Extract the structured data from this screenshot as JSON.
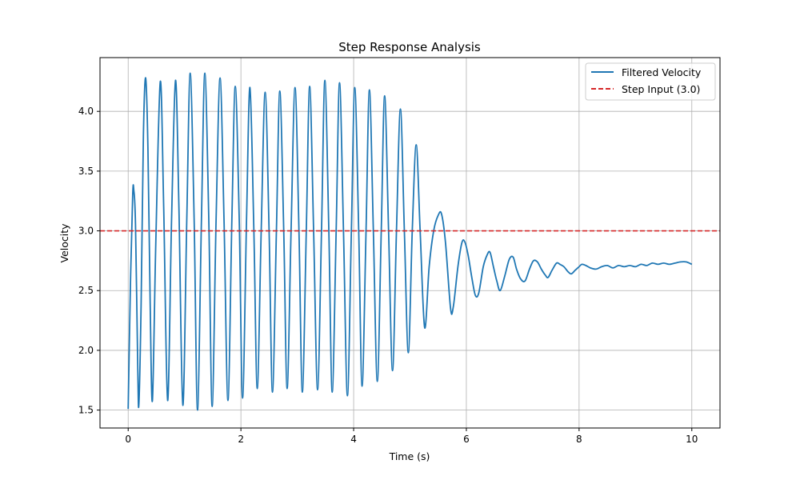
{
  "chart_data": {
    "type": "line",
    "title": "Step Response Analysis",
    "xlabel": "Time (s)",
    "ylabel": "Velocity",
    "xlim": [
      -0.5,
      10.5
    ],
    "ylim": [
      1.35,
      4.45
    ],
    "xticks": [
      0,
      2,
      4,
      6,
      8,
      10
    ],
    "xtick_labels": [
      "0",
      "2",
      "4",
      "6",
      "8",
      "10"
    ],
    "yticks": [
      1.5,
      2.0,
      2.5,
      3.0,
      3.5,
      4.0
    ],
    "ytick_labels": [
      "1.5",
      "2.0",
      "2.5",
      "3.0",
      "3.5",
      "4.0"
    ],
    "grid": true,
    "legend_position": "top-right",
    "series": [
      {
        "name": "Filtered Velocity",
        "color": "#1f77b4",
        "style": "solid",
        "points": [
          [
            0.0,
            1.51
          ],
          [
            0.04,
            2.55
          ],
          [
            0.08,
            3.3
          ],
          [
            0.1,
            3.34
          ],
          [
            0.13,
            3.05
          ],
          [
            0.17,
            1.85
          ],
          [
            0.19,
            1.55
          ],
          [
            0.23,
            2.4
          ],
          [
            0.27,
            3.8
          ],
          [
            0.31,
            4.28
          ],
          [
            0.35,
            3.7
          ],
          [
            0.39,
            2.4
          ],
          [
            0.43,
            1.58
          ],
          [
            0.49,
            2.9
          ],
          [
            0.57,
            4.25
          ],
          [
            0.63,
            3.2
          ],
          [
            0.7,
            1.58
          ],
          [
            0.77,
            3.1
          ],
          [
            0.84,
            4.26
          ],
          [
            0.9,
            3.2
          ],
          [
            0.97,
            1.54
          ],
          [
            1.04,
            3.1
          ],
          [
            1.1,
            4.32
          ],
          [
            1.17,
            3.1
          ],
          [
            1.23,
            1.5
          ],
          [
            1.3,
            3.1
          ],
          [
            1.36,
            4.32
          ],
          [
            1.43,
            3.1
          ],
          [
            1.49,
            1.53
          ],
          [
            1.56,
            3.1
          ],
          [
            1.63,
            4.28
          ],
          [
            1.7,
            3.1
          ],
          [
            1.77,
            1.58
          ],
          [
            1.84,
            3.1
          ],
          [
            1.9,
            4.21
          ],
          [
            1.97,
            3.1
          ],
          [
            2.03,
            1.6
          ],
          [
            2.1,
            3.1
          ],
          [
            2.16,
            4.2
          ],
          [
            2.23,
            3.0
          ],
          [
            2.29,
            1.68
          ],
          [
            2.36,
            3.0
          ],
          [
            2.43,
            4.16
          ],
          [
            2.5,
            3.0
          ],
          [
            2.56,
            1.65
          ],
          [
            2.63,
            3.0
          ],
          [
            2.69,
            4.17
          ],
          [
            2.76,
            3.0
          ],
          [
            2.82,
            1.68
          ],
          [
            2.89,
            3.0
          ],
          [
            2.96,
            4.2
          ],
          [
            3.03,
            3.0
          ],
          [
            3.09,
            1.65
          ],
          [
            3.16,
            3.0
          ],
          [
            3.22,
            4.21
          ],
          [
            3.29,
            3.0
          ],
          [
            3.36,
            1.67
          ],
          [
            3.43,
            3.0
          ],
          [
            3.49,
            4.26
          ],
          [
            3.56,
            3.0
          ],
          [
            3.62,
            1.65
          ],
          [
            3.69,
            3.0
          ],
          [
            3.75,
            4.24
          ],
          [
            3.82,
            3.0
          ],
          [
            3.89,
            1.62
          ],
          [
            3.96,
            3.0
          ],
          [
            4.02,
            4.2
          ],
          [
            4.09,
            3.0
          ],
          [
            4.15,
            1.7
          ],
          [
            4.22,
            3.0
          ],
          [
            4.28,
            4.18
          ],
          [
            4.35,
            3.0
          ],
          [
            4.42,
            1.74
          ],
          [
            4.49,
            3.0
          ],
          [
            4.55,
            4.13
          ],
          [
            4.62,
            3.0
          ],
          [
            4.69,
            1.83
          ],
          [
            4.76,
            3.0
          ],
          [
            4.83,
            4.02
          ],
          [
            4.9,
            3.0
          ],
          [
            4.97,
            1.98
          ],
          [
            5.04,
            3.0
          ],
          [
            5.11,
            3.72
          ],
          [
            5.18,
            3.0
          ],
          [
            5.26,
            2.19
          ],
          [
            5.34,
            2.7
          ],
          [
            5.42,
            3.0
          ],
          [
            5.5,
            3.13
          ],
          [
            5.56,
            3.14
          ],
          [
            5.63,
            2.9
          ],
          [
            5.72,
            2.35
          ],
          [
            5.77,
            2.37
          ],
          [
            5.85,
            2.7
          ],
          [
            5.92,
            2.9
          ],
          [
            5.97,
            2.91
          ],
          [
            6.03,
            2.8
          ],
          [
            6.1,
            2.6
          ],
          [
            6.16,
            2.46
          ],
          [
            6.22,
            2.48
          ],
          [
            6.3,
            2.7
          ],
          [
            6.37,
            2.8
          ],
          [
            6.42,
            2.82
          ],
          [
            6.48,
            2.7
          ],
          [
            6.54,
            2.58
          ],
          [
            6.6,
            2.5
          ],
          [
            6.68,
            2.62
          ],
          [
            6.76,
            2.76
          ],
          [
            6.83,
            2.78
          ],
          [
            6.89,
            2.68
          ],
          [
            6.96,
            2.6
          ],
          [
            7.04,
            2.58
          ],
          [
            7.12,
            2.68
          ],
          [
            7.19,
            2.75
          ],
          [
            7.26,
            2.74
          ],
          [
            7.33,
            2.68
          ],
          [
            7.4,
            2.63
          ],
          [
            7.45,
            2.61
          ],
          [
            7.52,
            2.67
          ],
          [
            7.6,
            2.73
          ],
          [
            7.66,
            2.72
          ],
          [
            7.73,
            2.7
          ],
          [
            7.8,
            2.66
          ],
          [
            7.86,
            2.64
          ],
          [
            7.93,
            2.67
          ],
          [
            8.0,
            2.7
          ],
          [
            8.05,
            2.72
          ],
          [
            8.12,
            2.71
          ],
          [
            8.2,
            2.69
          ],
          [
            8.3,
            2.68
          ],
          [
            8.4,
            2.7
          ],
          [
            8.5,
            2.71
          ],
          [
            8.6,
            2.69
          ],
          [
            8.7,
            2.71
          ],
          [
            8.8,
            2.7
          ],
          [
            8.9,
            2.71
          ],
          [
            9.0,
            2.7
          ],
          [
            9.1,
            2.72
          ],
          [
            9.2,
            2.71
          ],
          [
            9.3,
            2.73
          ],
          [
            9.4,
            2.72
          ],
          [
            9.5,
            2.73
          ],
          [
            9.6,
            2.72
          ],
          [
            9.7,
            2.73
          ],
          [
            9.8,
            2.74
          ],
          [
            9.9,
            2.74
          ],
          [
            10.0,
            2.72
          ]
        ]
      },
      {
        "name": "Step Input (3.0)",
        "color": "#d62728",
        "style": "dashed",
        "points": [
          [
            -0.5,
            3.0
          ],
          [
            10.5,
            3.0
          ]
        ]
      }
    ]
  }
}
